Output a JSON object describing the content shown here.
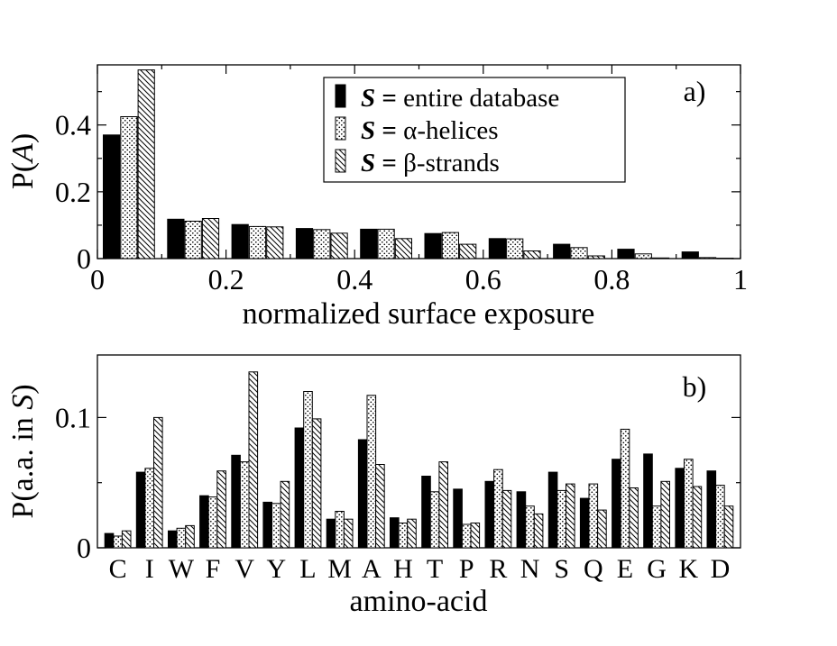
{
  "patterns": {
    "entire": "solid-black",
    "helices": "dots",
    "strands": "diagonal-hatch"
  },
  "chart_data": [
    {
      "type": "bar",
      "panel_label": "a)",
      "xlabel": "normalized surface exposure",
      "ylabel_prefix": "P(",
      "ylabel_var": "A",
      "ylabel_suffix": ")",
      "xlim": [
        0,
        1
      ],
      "ylim": [
        0,
        0.58
      ],
      "xticks": [
        0,
        0.2,
        0.4,
        0.6,
        0.8,
        1
      ],
      "xtick_labels": [
        "0",
        "0.2",
        "0.4",
        "0.6",
        "0.8",
        "1"
      ],
      "yticks": [
        0,
        0.2,
        0.4
      ],
      "ytick_labels": [
        "0",
        "0.2",
        "0.4"
      ],
      "bins": [
        0.05,
        0.15,
        0.25,
        0.35,
        0.45,
        0.55,
        0.65,
        0.75,
        0.85,
        0.95
      ],
      "legend_position": "top-center",
      "series": [
        {
          "key": "entire",
          "legend_var": "S",
          "legend_eq": " = ",
          "legend_desc": "entire database",
          "values": [
            0.37,
            0.118,
            0.102,
            0.09,
            0.088,
            0.075,
            0.06,
            0.043,
            0.028,
            0.02
          ]
        },
        {
          "key": "helices",
          "legend_var": "S",
          "legend_eq": " = ",
          "legend_desc": "α-helices",
          "values": [
            0.425,
            0.112,
            0.096,
            0.087,
            0.088,
            0.078,
            0.059,
            0.033,
            0.014,
            0.003
          ]
        },
        {
          "key": "strands",
          "legend_var": "S",
          "legend_eq": " = ",
          "legend_desc": "β-strands",
          "values": [
            0.565,
            0.12,
            0.095,
            0.076,
            0.06,
            0.043,
            0.023,
            0.008,
            0.002,
            0.001
          ]
        }
      ]
    },
    {
      "type": "bar",
      "panel_label": "b)",
      "xlabel": "amino-acid",
      "ylabel_prefix": "P(a.a. in ",
      "ylabel_var": "S",
      "ylabel_suffix": ")",
      "ylim": [
        0,
        0.148
      ],
      "yticks": [
        0,
        0.1
      ],
      "ytick_labels": [
        "0",
        "0.1"
      ],
      "categories": [
        "C",
        "I",
        "W",
        "F",
        "V",
        "Y",
        "L",
        "M",
        "A",
        "H",
        "T",
        "P",
        "R",
        "N",
        "S",
        "Q",
        "E",
        "G",
        "K",
        "D"
      ],
      "series": [
        {
          "key": "entire",
          "values": [
            0.011,
            0.058,
            0.013,
            0.04,
            0.071,
            0.035,
            0.092,
            0.022,
            0.083,
            0.023,
            0.055,
            0.045,
            0.051,
            0.043,
            0.058,
            0.038,
            0.068,
            0.072,
            0.061,
            0.059
          ]
        },
        {
          "key": "helices",
          "values": [
            0.009,
            0.061,
            0.015,
            0.039,
            0.066,
            0.034,
            0.12,
            0.028,
            0.117,
            0.019,
            0.043,
            0.018,
            0.06,
            0.032,
            0.044,
            0.049,
            0.091,
            0.032,
            0.068,
            0.048
          ]
        },
        {
          "key": "strands",
          "values": [
            0.013,
            0.1,
            0.017,
            0.059,
            0.135,
            0.051,
            0.099,
            0.022,
            0.064,
            0.022,
            0.066,
            0.019,
            0.044,
            0.026,
            0.049,
            0.029,
            0.046,
            0.051,
            0.047,
            0.032
          ]
        }
      ]
    }
  ]
}
